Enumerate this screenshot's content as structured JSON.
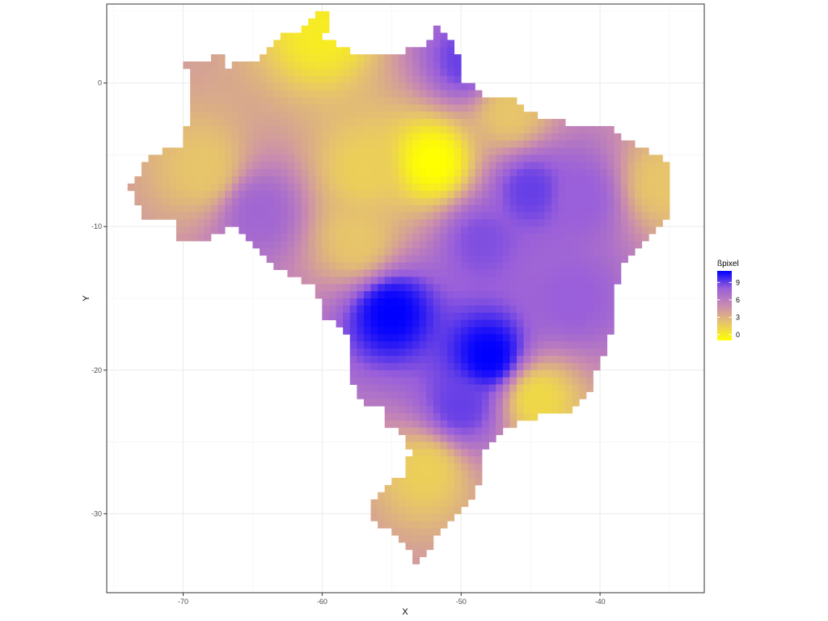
{
  "chart_data": {
    "type": "heatmap",
    "title": "",
    "xlabel": "X",
    "ylabel": "Y",
    "xlim": [
      -75.5,
      -32.5
    ],
    "ylim": [
      -35.5,
      5.5
    ],
    "x_ticks": [
      -70,
      -60,
      -50,
      -40
    ],
    "y_ticks": [
      0,
      -10,
      -20,
      -30
    ],
    "x_tick_labels": [
      "-70",
      "-60",
      "-50",
      "-40"
    ],
    "y_tick_labels": [
      "0",
      "-10",
      "-20",
      "-30"
    ],
    "grid": true,
    "legend": {
      "title": "ßpixel",
      "placement": "right",
      "breaks": [
        9,
        6,
        3,
        0
      ],
      "labels": [
        "9",
        "6",
        "3",
        "0"
      ],
      "range": [
        -1,
        11
      ],
      "colors": [
        "#ffff00",
        "#e7c56a",
        "#c98bb0",
        "#9a5fda",
        "#0000ff"
      ]
    },
    "cell_size_degrees": 0.5,
    "region": "Brazil",
    "field_description_points": [
      {
        "x": -52,
        "y": -5.5,
        "value": -1
      },
      {
        "x": -60,
        "y": 3.5,
        "value": 0
      },
      {
        "x": -68.5,
        "y": -6,
        "value": 2
      },
      {
        "x": -57,
        "y": -6,
        "value": 1.5
      },
      {
        "x": -57.5,
        "y": -11,
        "value": 2
      },
      {
        "x": -52.5,
        "y": -27,
        "value": 1.5
      },
      {
        "x": -44.5,
        "y": -22,
        "value": 1
      },
      {
        "x": -35.5,
        "y": -7,
        "value": 2
      },
      {
        "x": -46.5,
        "y": -2,
        "value": 2
      },
      {
        "x": -49.5,
        "y": 1.5,
        "value": 9
      },
      {
        "x": -55,
        "y": -16,
        "value": 11
      },
      {
        "x": -48,
        "y": -19,
        "value": 11
      },
      {
        "x": -48.5,
        "y": -11,
        "value": 8.5
      },
      {
        "x": -45,
        "y": -7.5,
        "value": 9
      },
      {
        "x": -41.5,
        "y": -8,
        "value": 8
      },
      {
        "x": -50,
        "y": -22.5,
        "value": 9
      },
      {
        "x": -64.5,
        "y": -9,
        "value": 7.5
      },
      {
        "x": -42,
        "y": -15,
        "value": 8
      }
    ]
  }
}
